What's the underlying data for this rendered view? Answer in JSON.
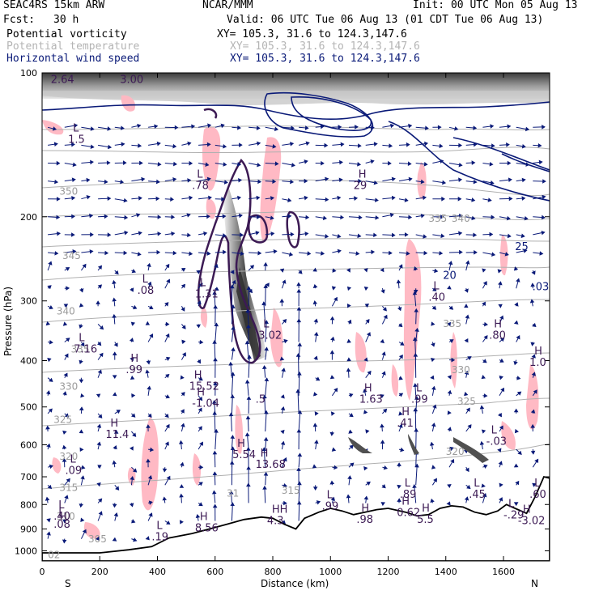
{
  "header": {
    "model": "SEAC4RS 15km ARW",
    "org": "NCAR/MMM",
    "init": "Init: 00 UTC Mon 05 Aug 13",
    "fcst_label": "Fcst:",
    "fcst_value": "30 h",
    "valid": "Valid: 06 UTC Tue 06 Aug 13 (01 CDT Tue 06 Aug 13)",
    "fields": [
      {
        "name": "Potential vorticity",
        "xy": "XY= 105.3, 31.6 to 124.3,147.6",
        "color": "#000000"
      },
      {
        "name": "Potential temperature",
        "xy": "XY= 105.3, 31.6 to 124.3,147.6",
        "color": "#b4b4b4"
      },
      {
        "name": "Horizontal wind speed",
        "xy": "XY= 105.3, 31.6 to 124.3,147.6",
        "color": "#0a1a78"
      }
    ]
  },
  "chart_data": {
    "type": "cross-section",
    "xlabel": "Distance (km)",
    "ylabel": "Pressure (hPa)",
    "xlim": [
      0,
      1760
    ],
    "ylim": [
      1050,
      100
    ],
    "y_scale": "log",
    "x_ticks": [
      "0",
      "200",
      "400",
      "600",
      "800",
      "1000",
      "1200",
      "1400",
      "1600"
    ],
    "x_tick_values": [
      0,
      200,
      400,
      600,
      800,
      1000,
      1200,
      1400,
      1600
    ],
    "y_ticks": [
      "100",
      "200",
      "300",
      "400",
      "500",
      "600",
      "700",
      "800",
      "900",
      "1000"
    ],
    "y_tick_values": [
      100,
      200,
      300,
      400,
      500,
      600,
      700,
      800,
      900,
      1000
    ],
    "left_end_label": "S",
    "right_end_label": "N",
    "terrain_km_hpa": [
      [
        0,
        1010
      ],
      [
        100,
        1010
      ],
      [
        200,
        1010
      ],
      [
        300,
        995
      ],
      [
        380,
        980
      ],
      [
        440,
        940
      ],
      [
        520,
        920
      ],
      [
        580,
        900
      ],
      [
        640,
        880
      ],
      [
        700,
        860
      ],
      [
        760,
        850
      ],
      [
        800,
        855
      ],
      [
        840,
        880
      ],
      [
        880,
        900
      ],
      [
        910,
        855
      ],
      [
        960,
        830
      ],
      [
        1000,
        815
      ],
      [
        1040,
        825
      ],
      [
        1080,
        840
      ],
      [
        1120,
        830
      ],
      [
        1160,
        820
      ],
      [
        1200,
        815
      ],
      [
        1260,
        830
      ],
      [
        1300,
        845
      ],
      [
        1340,
        840
      ],
      [
        1380,
        815
      ],
      [
        1420,
        805
      ],
      [
        1460,
        810
      ],
      [
        1500,
        830
      ],
      [
        1540,
        840
      ],
      [
        1580,
        825
      ],
      [
        1610,
        800
      ],
      [
        1640,
        815
      ],
      [
        1680,
        835
      ],
      [
        1710,
        770
      ],
      [
        1740,
        700
      ],
      [
        1760,
        705
      ]
    ],
    "theta_labels": [
      {
        "text": "350",
        "x": 60,
        "p": 180
      },
      {
        "text": "345",
        "x": 70,
        "p": 245
      },
      {
        "text": "340",
        "x": 50,
        "p": 320
      },
      {
        "text": "335",
        "x": 100,
        "p": 385
      },
      {
        "text": "330",
        "x": 60,
        "p": 460
      },
      {
        "text": "325",
        "x": 40,
        "p": 540
      },
      {
        "text": "320",
        "x": 60,
        "p": 645
      },
      {
        "text": "315",
        "x": 60,
        "p": 750
      },
      {
        "text": "310",
        "x": 50,
        "p": 860
      },
      {
        "text": "305",
        "x": 160,
        "p": 960
      },
      {
        "text": "02",
        "x": 20,
        "p": 1035
      },
      {
        "text": "31",
        "x": 640,
        "p": 770
      },
      {
        "text": "315",
        "x": 830,
        "p": 760
      },
      {
        "text": "330",
        "x": 1420,
        "p": 425
      },
      {
        "text": "325",
        "x": 1440,
        "p": 495
      },
      {
        "text": "335",
        "x": 1390,
        "p": 340
      },
      {
        "text": "320",
        "x": 1400,
        "p": 630
      },
      {
        "text": "335",
        "x": 1340,
        "p": 205
      },
      {
        "text": "340",
        "x": 1420,
        "p": 205
      }
    ],
    "pv_extrema": [
      {
        "mark": "L",
        "value": "1.5",
        "x": 90,
        "p": 140
      },
      {
        "mark": "L",
        "value": ".78",
        "x": 520,
        "p": 175
      },
      {
        "mark": "H",
        "value": "29",
        "x": 1080,
        "p": 175
      },
      {
        "mark": "L",
        "value": ".08",
        "x": 330,
        "p": 290
      },
      {
        "mark": "L",
        "value": "1.31",
        "x": 530,
        "p": 295
      },
      {
        "mark": "L",
        "value": "3.02",
        "x": 750,
        "p": 360
      },
      {
        "mark": "L",
        "value": ".40",
        "x": 1340,
        "p": 300
      },
      {
        "mark": "H",
        "value": ".80",
        "x": 1550,
        "p": 360
      },
      {
        "mark": "L",
        "value": "7.16",
        "x": 110,
        "p": 385
      },
      {
        "mark": "H",
        "value": ".99",
        "x": 290,
        "p": 425
      },
      {
        "mark": "H",
        "value": "15.52",
        "x": 510,
        "p": 460
      },
      {
        "mark": "H",
        "value": "1.63",
        "x": 1100,
        "p": 490
      },
      {
        "mark": "L",
        "value": ".99",
        "x": 1280,
        "p": 490
      },
      {
        "mark": "H",
        "value": "1.0",
        "x": 1690,
        "p": 410
      },
      {
        "mark": "",
        "value": ".5",
        "x": 740,
        "p": 490
      },
      {
        "mark": "H",
        "value": "-1.04",
        "x": 520,
        "p": 500
      },
      {
        "mark": "H",
        "value": ".41",
        "x": 1230,
        "p": 550
      },
      {
        "mark": "H",
        "value": "11.4",
        "x": 220,
        "p": 580
      },
      {
        "mark": "L",
        "value": "-.03",
        "x": 1540,
        "p": 600
      },
      {
        "mark": "H",
        "value": "5.54",
        "x": 660,
        "p": 640
      },
      {
        "mark": "H",
        "value": "13.68",
        "x": 740,
        "p": 670
      },
      {
        "mark": "L",
        "value": ".09",
        "x": 80,
        "p": 690
      },
      {
        "mark": "L",
        "value": ".89",
        "x": 1240,
        "p": 775
      },
      {
        "mark": "L",
        "value": ".45",
        "x": 1480,
        "p": 775
      },
      {
        "mark": "L",
        "value": ".60",
        "x": 1690,
        "p": 775
      },
      {
        "mark": "L",
        "value": ".99",
        "x": 970,
        "p": 820
      },
      {
        "mark": "H",
        "value": "0.62",
        "x": 1230,
        "p": 845
      },
      {
        "mark": "H",
        "value": ".98",
        "x": 1090,
        "p": 875
      },
      {
        "mark": "H",
        "value": "5.5",
        "x": 1300,
        "p": 875
      },
      {
        "mark": "L",
        "value": "-.29",
        "x": 1600,
        "p": 855
      },
      {
        "mark": "H",
        "value": "-3.02",
        "x": 1650,
        "p": 880
      },
      {
        "mark": "L",
        "value": ".40",
        "x": 40,
        "p": 860
      },
      {
        "mark": "L",
        "value": ".08",
        "x": 40,
        "p": 895
      },
      {
        "mark": "HH",
        "value": "4.3",
        "x": 780,
        "p": 880
      },
      {
        "mark": "H",
        "value": "8.56",
        "x": 530,
        "p": 910
      },
      {
        "mark": "L",
        "value": ".19",
        "x": 380,
        "p": 950
      },
      {
        "mark": "",
        "value": "2.64",
        "x": 30,
        "p": 105
      },
      {
        "mark": "",
        "value": "3.00",
        "x": 270,
        "p": 105
      }
    ],
    "wind_labels": [
      {
        "value": "25",
        "x": 1640,
        "p": 235
      },
      {
        "value": "20",
        "x": 1390,
        "p": 270
      },
      {
        "value": ".03",
        "x": 1700,
        "p": 285
      }
    ]
  }
}
